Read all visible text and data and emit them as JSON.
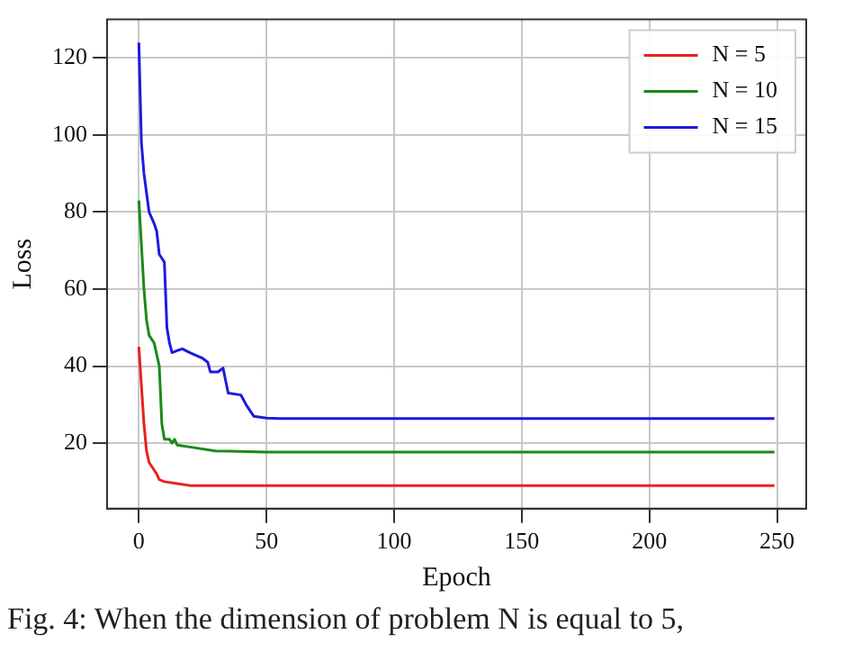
{
  "chart_data": {
    "type": "line",
    "xlabel": "Epoch",
    "ylabel": "Loss",
    "xlim": [
      -12.45,
      261.45
    ],
    "ylim": [
      3,
      130
    ],
    "xticks": [
      0,
      50,
      100,
      150,
      200,
      250
    ],
    "yticks": [
      20,
      40,
      60,
      80,
      100,
      120
    ],
    "grid": true,
    "legend": "top right",
    "marker": "none",
    "line_style": "solid",
    "annotations": [
      "Fig. 4: When the dimension of problem N is equal to 5,"
    ],
    "series": [
      {
        "name": "N = 5",
        "color": "#e8221c",
        "x": [
          0,
          1,
          2,
          3,
          4,
          5,
          7,
          8,
          10,
          15,
          20,
          249
        ],
        "values": [
          45,
          35,
          25,
          18,
          15,
          14,
          12,
          10.5,
          10,
          9.5,
          9,
          9
        ]
      },
      {
        "name": "N = 10",
        "color": "#1a8a1a",
        "x": [
          0,
          2,
          3,
          4,
          6,
          8,
          9,
          10,
          12,
          13,
          14,
          15,
          20,
          30,
          50,
          249
        ],
        "values": [
          83,
          60,
          52,
          48,
          46,
          40,
          25,
          21,
          21,
          20,
          21,
          19.5,
          19,
          18,
          17.7,
          17.7
        ]
      },
      {
        "name": "N = 15",
        "color": "#1c1cdc",
        "x": [
          0,
          1,
          2,
          3,
          4,
          6,
          7,
          8,
          9,
          10,
          11,
          12,
          13,
          15,
          17,
          20,
          25,
          27,
          28,
          31,
          33,
          35,
          40,
          42,
          45,
          50,
          55,
          249
        ],
        "values": [
          124,
          98,
          90,
          85,
          80,
          77,
          75,
          69,
          68,
          67,
          50,
          46,
          43.5,
          44,
          44.5,
          43.5,
          42,
          41,
          38.5,
          38.5,
          39.5,
          33,
          32.5,
          30,
          27,
          26.5,
          26.4,
          26.4
        ]
      }
    ]
  }
}
